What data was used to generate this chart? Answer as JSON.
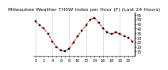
{
  "title": "Milwaukee Weather THSW Index per Hour (F) (Last 24 Hours)",
  "hours": [
    0,
    1,
    2,
    3,
    4,
    5,
    6,
    7,
    8,
    9,
    10,
    11,
    12,
    13,
    14,
    15,
    16,
    17,
    18,
    19,
    20,
    21,
    22,
    23
  ],
  "values": [
    48,
    44,
    40,
    34,
    26,
    20,
    16,
    15,
    18,
    25,
    32,
    38,
    44,
    50,
    52,
    46,
    40,
    36,
    34,
    36,
    34,
    32,
    30,
    26
  ],
  "line_color": "#ff0000",
  "marker_color": "#000000",
  "bg_color": "#ffffff",
  "plot_bg": "#ffffff",
  "grid_color": "#888888",
  "ylim": [
    10,
    58
  ],
  "ytick_values": [
    15,
    20,
    25,
    30,
    35,
    40,
    45,
    50,
    55
  ],
  "ytick_labels": [
    "15",
    "20",
    "25",
    "30",
    "35",
    "40",
    "45",
    "50",
    "55"
  ],
  "title_fontsize": 4.5,
  "tick_fontsize": 3.5,
  "linewidth": 0.7,
  "markersize": 1.5
}
